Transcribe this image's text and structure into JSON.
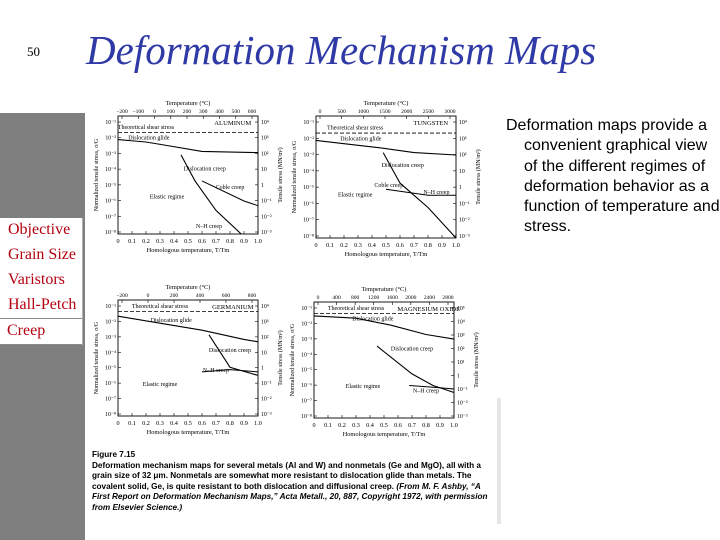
{
  "slide": {
    "number": "50",
    "title": "Deformation Mechanism Maps",
    "body_text": "Deformation maps provide a convenient graphical view of the different regimes of deformation behavior as a function of temperature and stress."
  },
  "sidebar": {
    "items": [
      {
        "label": "Objective",
        "active": false
      },
      {
        "label": "Grain Size",
        "active": false
      },
      {
        "label": "Varistors",
        "active": false
      },
      {
        "label": "Hall-Petch",
        "active": false
      },
      {
        "label": "Creep",
        "active": true
      }
    ]
  },
  "colors": {
    "title": "#2f3aa6",
    "sidebar_background": "#7f7f7f",
    "nav_text": "#b3000f"
  },
  "figure": {
    "caption_label": "Figure 7.15",
    "caption_body": "Deformation mechanism maps for several metals (Al and W) and nonmetals (Ge and MgO), all with a grain size of 32 μm. Nonmetals are somewhat more resistant to dislocation glide than metals. The covalent solid, Ge, is quite resistant to both dislocation and diffusional creep.",
    "caption_source": "(From M. F. Ashby, “A First Report on Deformation Mechanism Maps,” Acta Metall., 20, 887, Copyright 1972, with permission from Elsevier Science.)"
  },
  "chart_data": [
    {
      "type": "line",
      "title": "ALUMINUM",
      "xlabel": "Homologous temperature, T/Tm",
      "x_ticks": [
        "0",
        "0.1",
        "0.2",
        "0.3",
        "0.4",
        "0.5",
        "0.6",
        "0.7",
        "0.8",
        "0.9",
        "1.0"
      ],
      "top_axis_label": "Temperature (°C)",
      "top_ticks": [
        "−200",
        "−100",
        "0",
        "100",
        "200",
        "300",
        "400",
        "500",
        "600"
      ],
      "ylabel": "Normalized tensile stress, σ/G",
      "y_ticks": [
        "10⁻¹",
        "10⁻²",
        "10⁻³",
        "10⁻⁴",
        "10⁻⁵",
        "10⁻⁶",
        "10⁻⁷",
        "10⁻⁸"
      ],
      "right_axis_label": "Tensile stress (MN/m²)",
      "right_ticks": [
        "10⁴",
        "10³",
        "10²",
        "10",
        "1",
        "10⁻¹",
        "10⁻²",
        "10⁻³"
      ],
      "regions": [
        "Theoretical shear stress",
        "Dislocation glide",
        "Dislocation creep",
        "Elastic regime",
        "Coble creep",
        "N–H creep"
      ]
    },
    {
      "type": "line",
      "title": "TUNGSTEN",
      "xlabel": "Homologous temperature, T/Tm",
      "x_ticks": [
        "0",
        "0.1",
        "0.2",
        "0.3",
        "0.4",
        "0.5",
        "0.6",
        "0.7",
        "0.8",
        "0.9",
        "1.0"
      ],
      "top_axis_label": "Temperature (°C)",
      "top_ticks": [
        "0",
        "500",
        "1000",
        "1500",
        "2000",
        "2500",
        "3000"
      ],
      "ylabel": "Normalized tensile stress, σ/G",
      "y_ticks": [
        "10⁻¹",
        "10⁻²",
        "10⁻³",
        "10⁻⁴",
        "10⁻⁵",
        "10⁻⁶",
        "10⁻⁷",
        "10⁻⁸"
      ],
      "right_axis_label": "Tensile stress (MN/m²)",
      "right_ticks": [
        "10⁴",
        "10³",
        "10²",
        "10",
        "1",
        "10⁻¹",
        "10⁻²",
        "10⁻³"
      ],
      "regions": [
        "Theoretical shear stress",
        "Dislocation glide",
        "Dislocation creep",
        "Coble creep",
        "Elastic regime",
        "N–H creep"
      ]
    },
    {
      "type": "line",
      "title": "GERMANIUM",
      "xlabel": "Homologous temperature, T/Tm",
      "x_ticks": [
        "0",
        "0.1",
        "0.2",
        "0.3",
        "0.4",
        "0.5",
        "0.6",
        "0.7",
        "0.8",
        "0.9",
        "1.0"
      ],
      "top_axis_label": "Temperature (°C)",
      "top_ticks": [
        "−200",
        "0",
        "200",
        "400",
        "600",
        "800"
      ],
      "ylabel": "Normalized tensile stress, σ/G",
      "y_ticks": [
        "10⁻¹",
        "10⁻²",
        "10⁻³",
        "10⁻⁴",
        "10⁻⁵",
        "10⁻⁶",
        "10⁻⁷",
        "10⁻⁸"
      ],
      "right_axis_label": "Tensile stress (MN/m²)",
      "right_ticks": [
        "10⁴",
        "10³",
        "10²",
        "10",
        "1",
        "10⁻¹",
        "10⁻²",
        "10⁻³"
      ],
      "regions": [
        "Theoretical shear stress",
        "Dislocation glide",
        "Dislocation creep",
        "N–H creep",
        "Elastic regime"
      ]
    },
    {
      "type": "line",
      "title": "MAGNESIUM OXIDE",
      "xlabel": "Homologous temperature, T/Tm",
      "x_ticks": [
        "0",
        "0.1",
        "0.2",
        "0.3",
        "0.4",
        "0.5",
        "0.6",
        "0.7",
        "0.8",
        "0.9",
        "1.0"
      ],
      "top_axis_label": "Temperature (°C)",
      "top_ticks": [
        "0",
        "400",
        "800",
        "1200",
        "1600",
        "2000",
        "2400",
        "2800"
      ],
      "ylabel": "Normalized tensile stress, σ/G",
      "y_ticks": [
        "10⁻¹",
        "10⁻²",
        "10⁻³",
        "10⁻⁴",
        "10⁻⁵",
        "10⁻⁶",
        "10⁻⁷",
        "10⁻⁸"
      ],
      "right_axis_label": "Tensile stress (MN/m²)",
      "right_ticks": [
        "10⁵",
        "10⁴",
        "10³",
        "10²",
        "10¹",
        "1",
        "10⁻¹",
        "10⁻²",
        "10⁻³"
      ],
      "regions": [
        "Theoretical shear stress",
        "Dislocation glide",
        "Dislocation creep",
        "Elastic regime",
        "N–H creep"
      ]
    }
  ]
}
